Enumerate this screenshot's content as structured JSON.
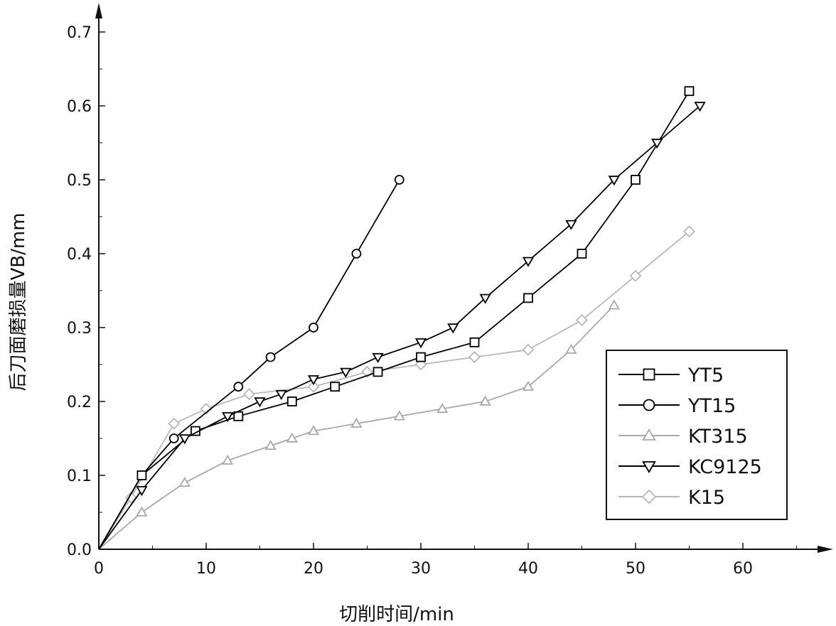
{
  "chart_data": {
    "type": "line",
    "xlabel": "切削时间/min",
    "ylabel": "后刀面磨损量VB/mm",
    "xlim": [
      0,
      67
    ],
    "ylim": [
      0,
      0.7
    ],
    "x_ticks": [
      "0",
      "10",
      "20",
      "30",
      "40",
      "50",
      "60"
    ],
    "y_ticks": [
      "0.0",
      "0.1",
      "0.2",
      "0.3",
      "0.4",
      "0.5",
      "0.6",
      "0.7"
    ],
    "grid": false,
    "legend_position": "bottom-right",
    "series": [
      {
        "name": "YT5",
        "marker": "square",
        "color": "#000000",
        "x": [
          0,
          4,
          9,
          13,
          18,
          22,
          26,
          30,
          35,
          40,
          45,
          50,
          55
        ],
        "y": [
          0,
          0.1,
          0.16,
          0.18,
          0.2,
          0.22,
          0.24,
          0.26,
          0.28,
          0.34,
          0.4,
          0.5,
          0.62
        ]
      },
      {
        "name": "YT15",
        "marker": "circle",
        "color": "#000000",
        "x": [
          0,
          4,
          7,
          13,
          16,
          20,
          24,
          28
        ],
        "y": [
          0,
          0.1,
          0.15,
          0.22,
          0.26,
          0.3,
          0.4,
          0.5
        ]
      },
      {
        "name": "KT315",
        "marker": "triangle-up",
        "color": "#a8a8a8",
        "x": [
          0,
          4,
          8,
          12,
          16,
          18,
          20,
          24,
          28,
          32,
          36,
          40,
          44,
          48
        ],
        "y": [
          0,
          0.05,
          0.09,
          0.12,
          0.14,
          0.15,
          0.16,
          0.17,
          0.18,
          0.19,
          0.2,
          0.22,
          0.27,
          0.33
        ]
      },
      {
        "name": "KC9125",
        "marker": "triangle-down",
        "color": "#000000",
        "x": [
          0,
          4,
          8,
          12,
          15,
          17,
          20,
          23,
          26,
          30,
          33,
          36,
          40,
          44,
          48,
          52,
          56
        ],
        "y": [
          0,
          0.08,
          0.15,
          0.18,
          0.2,
          0.21,
          0.23,
          0.24,
          0.26,
          0.28,
          0.3,
          0.34,
          0.39,
          0.44,
          0.5,
          0.55,
          0.6
        ]
      },
      {
        "name": "K15",
        "marker": "diamond",
        "color": "#b8b8b8",
        "x": [
          0,
          3,
          7,
          10,
          14,
          20,
          25,
          30,
          35,
          40,
          45,
          50,
          55
        ],
        "y": [
          0,
          0.07,
          0.17,
          0.19,
          0.21,
          0.22,
          0.24,
          0.25,
          0.26,
          0.27,
          0.31,
          0.37,
          0.43
        ]
      }
    ]
  }
}
